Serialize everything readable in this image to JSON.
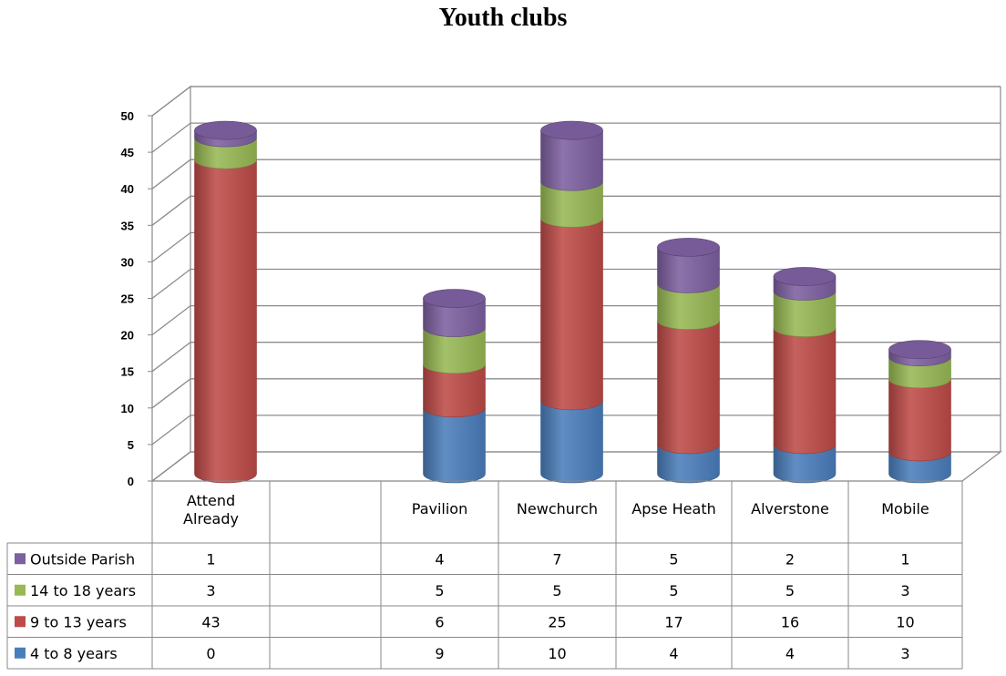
{
  "chart_data": {
    "type": "bar",
    "stacked": true,
    "title": "Youth clubs",
    "categories": [
      "Attend\nAlready",
      "",
      "Pavilion",
      "Newchurch",
      "Apse Heath",
      "Alverstone",
      "Mobile"
    ],
    "ylim": [
      0,
      50
    ],
    "yticks": [
      0,
      5,
      10,
      15,
      20,
      25,
      30,
      35,
      40,
      45,
      50
    ],
    "grid": true,
    "legend_placement": "data-table-left",
    "series": [
      {
        "name": "4 to 8 years",
        "color": "#4a7ebb",
        "values": [
          0,
          null,
          9,
          10,
          4,
          4,
          3
        ]
      },
      {
        "name": "9 to 13 years",
        "color": "#be4b48",
        "values": [
          43,
          null,
          6,
          25,
          17,
          16,
          10
        ]
      },
      {
        "name": "14 to 18 years",
        "color": "#98b954",
        "values": [
          3,
          null,
          5,
          5,
          5,
          5,
          3
        ]
      },
      {
        "name": "Outside Parish",
        "color": "#7d60a0",
        "values": [
          1,
          null,
          4,
          7,
          5,
          2,
          1
        ]
      }
    ],
    "table_row_order": [
      "Outside Parish",
      "14 to 18 years",
      "9 to 13 years",
      "4 to 8 years"
    ]
  }
}
